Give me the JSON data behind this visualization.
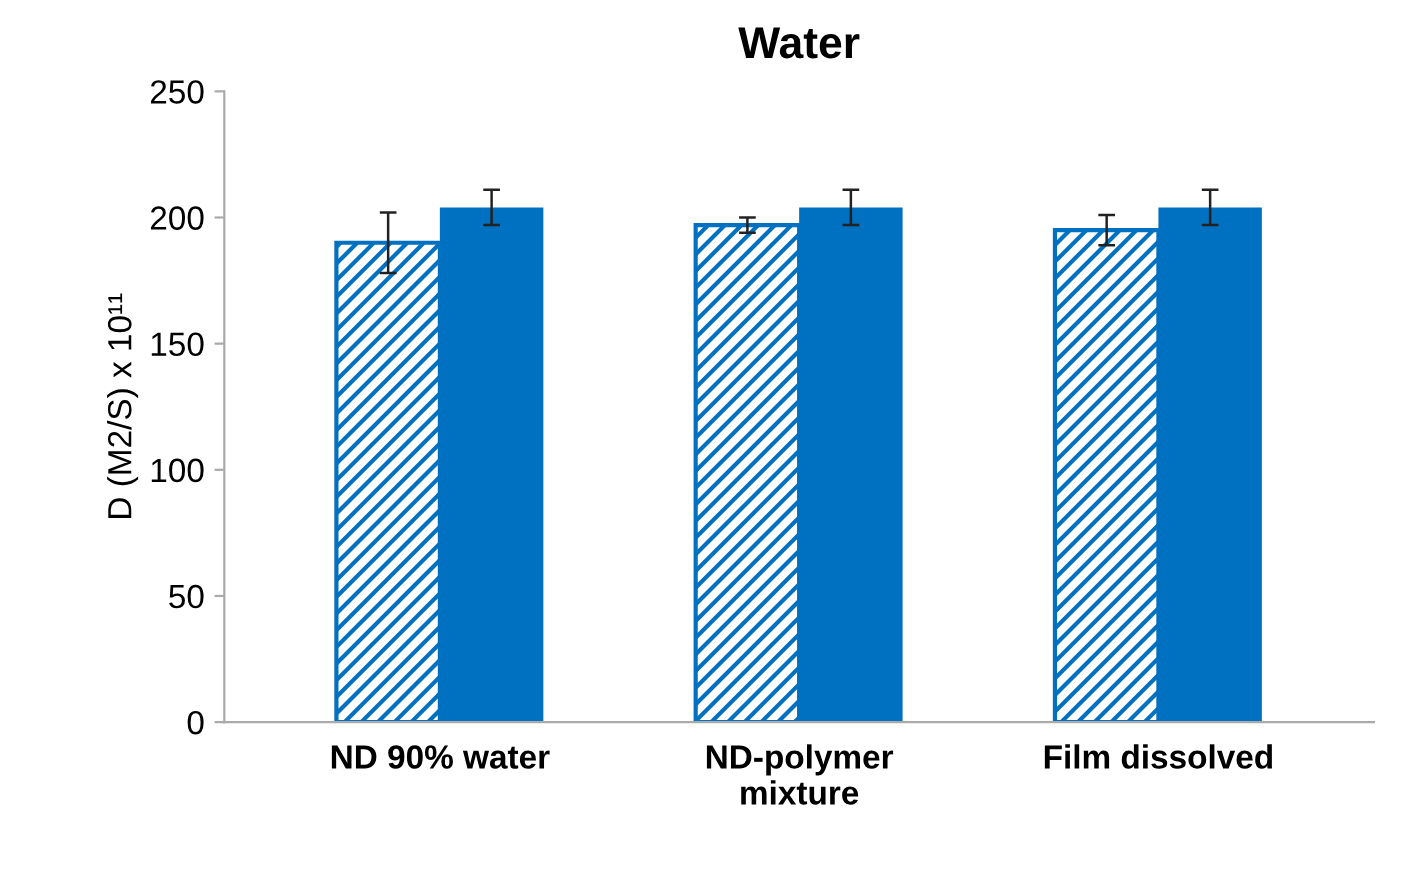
{
  "chart_data": {
    "type": "bar",
    "title": "Water",
    "ylabel": "D (M2/S) x 10¹¹",
    "categories": [
      "ND 90% water",
      "ND-polymer\nmixture",
      "Film dissolved"
    ],
    "series": [
      {
        "color": "#0070c0",
        "values": [
          190,
          197,
          195
        ],
        "errors": [
          12,
          3,
          6
        ]
      },
      {
        "color": "#0070c0",
        "values": [
          204,
          204,
          204
        ],
        "errors": [
          7,
          7,
          7
        ]
      }
    ],
    "ylim": [
      0,
      250
    ],
    "yticks": [
      0,
      50,
      100,
      150,
      200,
      250
    ],
    "grid": false,
    "legend": false
  }
}
